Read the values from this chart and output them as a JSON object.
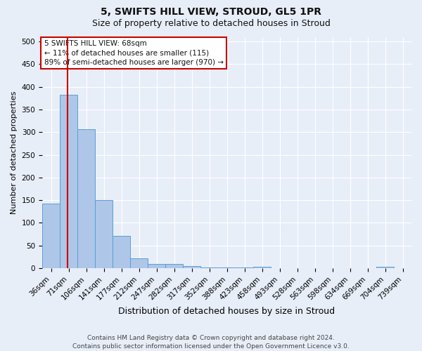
{
  "title": "5, SWIFTS HILL VIEW, STROUD, GL5 1PR",
  "subtitle": "Size of property relative to detached houses in Stroud",
  "xlabel": "Distribution of detached houses by size in Stroud",
  "ylabel": "Number of detached properties",
  "bar_labels": [
    "36sqm",
    "71sqm",
    "106sqm",
    "141sqm",
    "177sqm",
    "212sqm",
    "247sqm",
    "282sqm",
    "317sqm",
    "352sqm",
    "388sqm",
    "423sqm",
    "458sqm",
    "493sqm",
    "528sqm",
    "563sqm",
    "598sqm",
    "634sqm",
    "669sqm",
    "704sqm",
    "739sqm"
  ],
  "bar_values": [
    143,
    383,
    307,
    150,
    72,
    22,
    10,
    10,
    5,
    2,
    2,
    2,
    4,
    0,
    0,
    0,
    0,
    0,
    0,
    4,
    0
  ],
  "bar_color": "#aec6e8",
  "bar_edge_color": "#5a9fd4",
  "bar_width": 1.0,
  "vline_x_pos": 0.94,
  "vline_color": "#cc0000",
  "annotation_line1": "5 SWIFTS HILL VIEW: 68sqm",
  "annotation_line2": "← 11% of detached houses are smaller (115)",
  "annotation_line3": "89% of semi-detached houses are larger (970) →",
  "annotation_box_color": "#ffffff",
  "annotation_box_edge_color": "#cc0000",
  "ylim": [
    0,
    510
  ],
  "yticks": [
    0,
    50,
    100,
    150,
    200,
    250,
    300,
    350,
    400,
    450,
    500
  ],
  "bg_color": "#e8eef8",
  "grid_color": "#ffffff",
  "footer_line1": "Contains HM Land Registry data © Crown copyright and database right 2024.",
  "footer_line2": "Contains public sector information licensed under the Open Government Licence v3.0.",
  "title_fontsize": 10,
  "subtitle_fontsize": 9,
  "xlabel_fontsize": 9,
  "ylabel_fontsize": 8,
  "tick_fontsize": 7.5,
  "annotation_fontsize": 7.5,
  "footer_fontsize": 6.5
}
